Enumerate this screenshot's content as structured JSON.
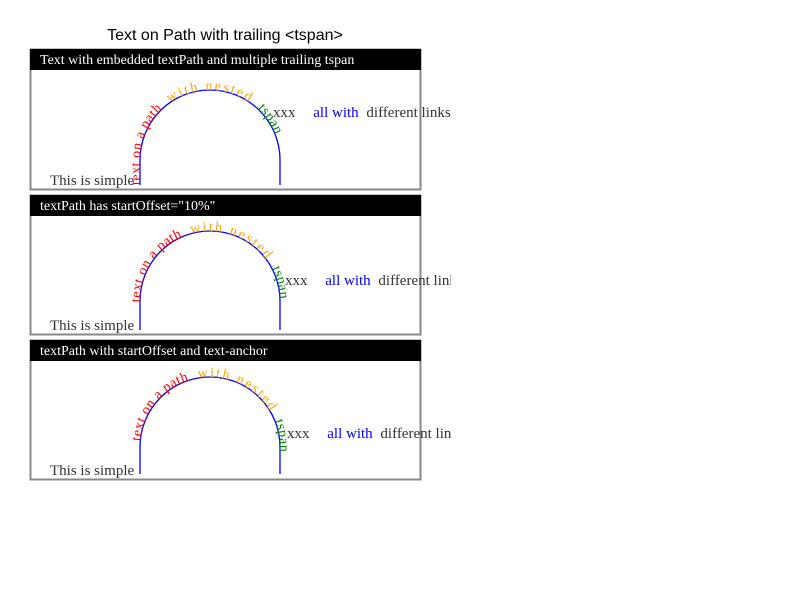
{
  "page_title": "Text on Path with trailing <tspan>",
  "colors": {
    "header_bg": "#000000",
    "header_text": "#ffffff",
    "panel_border": "#888888",
    "arc_stroke": "#0000ff",
    "text_red": "#ff0000",
    "text_orange": "#ffa500",
    "text_green": "#008000",
    "text_blue": "#0000ff",
    "text_dark": "#333333"
  },
  "panels": [
    {
      "header": "Text with embedded textPath and multiple trailing tspan",
      "simple": "This is simple",
      "path_part1": "text on a path",
      "path_part2": "with nested",
      "path_part3": "tspan",
      "trail_xxx": "xxx",
      "trail_all_with": "all with",
      "trail_rest": "different links."
    },
    {
      "header": "textPath has startOffset=\"10%\"",
      "simple": "This is simple",
      "path_part1": "text on a path",
      "path_part2": "with nested",
      "path_part3": "tspan",
      "trail_xxx": "xxx",
      "trail_all_with": "all with",
      "trail_rest": "different links."
    },
    {
      "header": "textPath with startOffset and text-anchor",
      "simple": "This is simple",
      "path_part1": "text on a path",
      "path_part2": "with nested",
      "path_part3": "tspan",
      "trail_xxx": "xxx",
      "trail_all_with": "all with",
      "trail_rest": "different links."
    }
  ]
}
